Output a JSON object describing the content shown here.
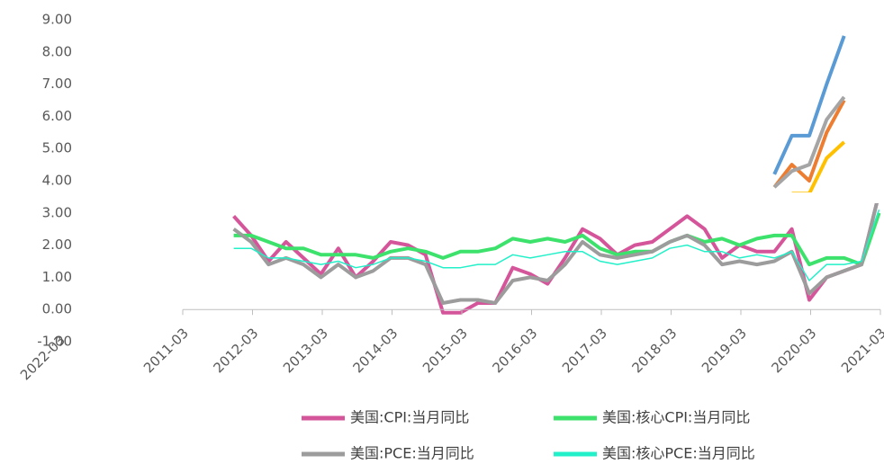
{
  "chart_data": {
    "type": "line",
    "x": [
      "2012-01",
      "2012-04",
      "2012-07",
      "2012-10",
      "2013-01",
      "2013-04",
      "2013-07",
      "2013-10",
      "2014-01",
      "2014-04",
      "2014-07",
      "2014-10",
      "2015-01",
      "2015-04",
      "2015-07",
      "2015-10",
      "2016-01",
      "2016-04",
      "2016-07",
      "2016-10",
      "2017-01",
      "2017-04",
      "2017-07",
      "2017-10",
      "2018-01",
      "2018-04",
      "2018-07",
      "2018-10",
      "2019-01",
      "2019-04",
      "2019-07",
      "2019-10",
      "2020-01",
      "2020-04",
      "2020-07",
      "2020-10",
      "2021-01",
      "2021-04"
    ],
    "series": [
      {
        "name": "美国:CPI:当月同比",
        "color": "#d5559a",
        "width": 4,
        "values": [
          2.9,
          2.3,
          1.5,
          2.1,
          1.6,
          1.1,
          1.9,
          1.0,
          1.5,
          2.1,
          2.0,
          1.7,
          -0.1,
          -0.1,
          0.2,
          0.2,
          1.3,
          1.1,
          0.8,
          1.6,
          2.5,
          2.2,
          1.7,
          2.0,
          2.1,
          2.5,
          2.9,
          2.5,
          1.6,
          2.0,
          1.8,
          1.8,
          2.5,
          0.3,
          1.0,
          1.2,
          1.4,
          3.6
        ]
      },
      {
        "name": "美国:核心CPI:当月同比",
        "color": "#3de26c",
        "width": 4,
        "values": [
          2.3,
          2.3,
          2.1,
          1.9,
          1.9,
          1.7,
          1.7,
          1.7,
          1.6,
          1.8,
          1.9,
          1.8,
          1.6,
          1.8,
          1.8,
          1.9,
          2.2,
          2.1,
          2.2,
          2.1,
          2.3,
          1.9,
          1.7,
          1.8,
          1.8,
          2.1,
          2.3,
          2.1,
          2.2,
          2.0,
          2.2,
          2.3,
          2.3,
          1.4,
          1.6,
          1.6,
          1.4,
          3.0
        ]
      },
      {
        "name": "美国:PCE:当月同比",
        "color": "#9c9c9c",
        "width": 4,
        "values": [
          2.5,
          2.1,
          1.4,
          1.6,
          1.4,
          1.0,
          1.4,
          1.0,
          1.2,
          1.6,
          1.6,
          1.4,
          0.2,
          0.3,
          0.3,
          0.2,
          0.9,
          1.0,
          0.9,
          1.4,
          2.1,
          1.7,
          1.6,
          1.7,
          1.8,
          2.1,
          2.3,
          2.0,
          1.4,
          1.5,
          1.4,
          1.5,
          1.8,
          0.5,
          1.0,
          1.2,
          1.4,
          3.6
        ]
      },
      {
        "name": "美国:核心PCE:当月同比",
        "color": "#22f0c8",
        "width": 1.5,
        "values": [
          1.9,
          1.9,
          1.6,
          1.6,
          1.5,
          1.4,
          1.5,
          1.3,
          1.4,
          1.6,
          1.6,
          1.5,
          1.3,
          1.3,
          1.4,
          1.4,
          1.7,
          1.6,
          1.7,
          1.8,
          1.8,
          1.5,
          1.4,
          1.5,
          1.6,
          1.9,
          2.0,
          1.8,
          1.8,
          1.6,
          1.7,
          1.6,
          1.8,
          0.9,
          1.4,
          1.4,
          1.5,
          3.1
        ]
      },
      {
        "color": "#5b9bd5",
        "width": 4,
        "values": [
          null,
          null,
          null,
          null,
          null,
          null,
          null,
          null,
          null,
          null,
          null,
          null,
          null,
          null,
          null,
          null,
          null,
          null,
          null,
          null,
          null,
          null,
          null,
          null,
          null,
          null,
          null,
          null,
          null,
          null,
          null,
          4.2,
          5.4,
          5.4,
          7.0,
          8.5,
          null,
          null
        ]
      },
      {
        "color": "#ed7d31",
        "width": 4,
        "values": [
          null,
          null,
          null,
          null,
          null,
          null,
          null,
          null,
          null,
          null,
          null,
          null,
          null,
          null,
          null,
          null,
          null,
          null,
          null,
          null,
          null,
          null,
          null,
          null,
          null,
          null,
          null,
          null,
          null,
          null,
          null,
          3.8,
          4.5,
          4.0,
          5.5,
          6.5,
          null,
          null
        ]
      },
      {
        "color": "#a5a5a5",
        "width": 4,
        "values": [
          null,
          null,
          null,
          null,
          null,
          null,
          null,
          null,
          null,
          null,
          null,
          null,
          null,
          null,
          null,
          null,
          null,
          null,
          null,
          null,
          null,
          null,
          null,
          null,
          null,
          null,
          null,
          null,
          null,
          null,
          null,
          3.8,
          4.3,
          4.5,
          5.9,
          6.6,
          null,
          null
        ]
      },
      {
        "color": "#ffc000",
        "width": 4,
        "values": [
          null,
          null,
          null,
          null,
          null,
          null,
          null,
          null,
          null,
          null,
          null,
          null,
          null,
          null,
          null,
          null,
          null,
          null,
          null,
          null,
          null,
          null,
          null,
          null,
          null,
          null,
          null,
          null,
          null,
          null,
          null,
          null,
          3.6,
          3.6,
          4.7,
          5.2,
          null,
          null
        ]
      }
    ],
    "ylim": [
      -1,
      9
    ],
    "yticks": [
      {
        "value": -1,
        "label": "-1.00"
      },
      {
        "value": 0,
        "label": "0.00"
      },
      {
        "value": 1,
        "label": "1.00"
      },
      {
        "value": 2,
        "label": "2.00"
      },
      {
        "value": 3,
        "label": "3.00"
      },
      {
        "value": 4,
        "label": "4.00"
      },
      {
        "value": 5,
        "label": "5.00"
      },
      {
        "value": 6,
        "label": "6.00"
      },
      {
        "value": 7,
        "label": "7.00"
      },
      {
        "value": 8,
        "label": "8.00"
      },
      {
        "value": 9,
        "label": "9.00"
      }
    ],
    "xticks": [
      "2011-03",
      "2012-03",
      "2013-03",
      "2014-03",
      "2015-03",
      "2016-03",
      "2017-03",
      "2018-03",
      "2019-03",
      "2020-03",
      "2021-03"
    ],
    "annotations": [
      "2022-03"
    ]
  }
}
